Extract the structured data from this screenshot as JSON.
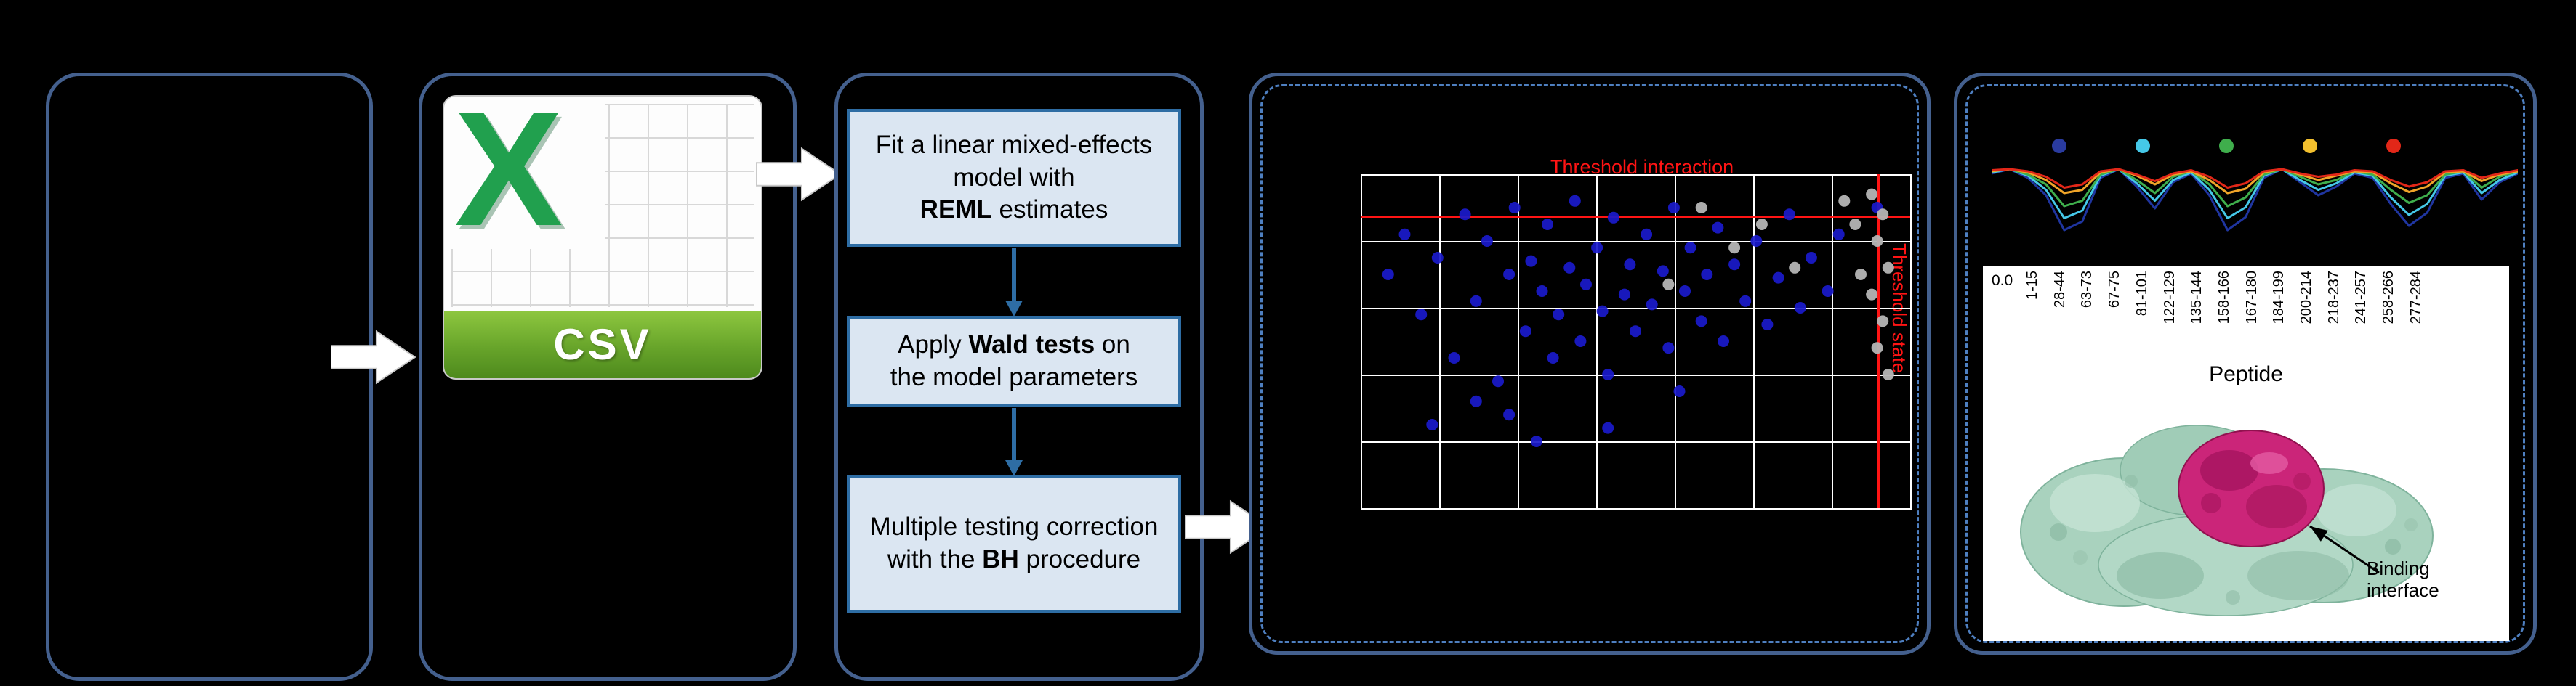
{
  "colors": {
    "panel_border": "#44608e",
    "dashed_border": "#4e7fc0",
    "step_fill": "#dbe6f2",
    "step_border": "#2e6da4",
    "arrow_blue": "#2e6da4",
    "threshold_red": "#ff1414",
    "point_blue": "#1a1acc",
    "point_gray": "#b5b5b5",
    "grid_white": "#ffffff",
    "csv_green_x": "#21a04e",
    "banner_top": "#8dc63f",
    "banner_bottom": "#4e8a1d"
  },
  "csv": {
    "logo_letter": "X",
    "banner_label": "CSV"
  },
  "method_steps": [
    {
      "pre": "Fit a linear mixed-effects model with\n",
      "bold": "REML",
      "post": " estimates"
    },
    {
      "pre": "Apply ",
      "bold": "Wald tests",
      "post": " on\nthe model parameters"
    },
    {
      "pre": "Multiple testing correction\nwith the ",
      "bold": "BH",
      "post": " procedure"
    }
  ],
  "scatter": {
    "hline_label": "Threshold interaction",
    "vline_label": "Threshold state",
    "hline_y": 0.125,
    "vline_x": 0.942,
    "grid_cols": 7,
    "grid_rows": 5,
    "points_blue": [
      [
        0.05,
        0.3
      ],
      [
        0.08,
        0.18
      ],
      [
        0.11,
        0.42
      ],
      [
        0.14,
        0.25
      ],
      [
        0.17,
        0.55
      ],
      [
        0.19,
        0.12
      ],
      [
        0.21,
        0.38
      ],
      [
        0.23,
        0.2
      ],
      [
        0.25,
        0.62
      ],
      [
        0.27,
        0.3
      ],
      [
        0.28,
        0.1
      ],
      [
        0.3,
        0.47
      ],
      [
        0.31,
        0.26
      ],
      [
        0.33,
        0.35
      ],
      [
        0.34,
        0.15
      ],
      [
        0.35,
        0.55
      ],
      [
        0.36,
        0.42
      ],
      [
        0.38,
        0.28
      ],
      [
        0.39,
        0.08
      ],
      [
        0.4,
        0.5
      ],
      [
        0.41,
        0.33
      ],
      [
        0.43,
        0.22
      ],
      [
        0.44,
        0.41
      ],
      [
        0.45,
        0.6
      ],
      [
        0.46,
        0.13
      ],
      [
        0.48,
        0.36
      ],
      [
        0.49,
        0.27
      ],
      [
        0.5,
        0.47
      ],
      [
        0.52,
        0.18
      ],
      [
        0.53,
        0.39
      ],
      [
        0.55,
        0.29
      ],
      [
        0.56,
        0.52
      ],
      [
        0.57,
        0.1
      ],
      [
        0.59,
        0.35
      ],
      [
        0.6,
        0.22
      ],
      [
        0.62,
        0.44
      ],
      [
        0.63,
        0.3
      ],
      [
        0.65,
        0.16
      ],
      [
        0.66,
        0.5
      ],
      [
        0.68,
        0.27
      ],
      [
        0.7,
        0.38
      ],
      [
        0.72,
        0.2
      ],
      [
        0.74,
        0.45
      ],
      [
        0.76,
        0.31
      ],
      [
        0.78,
        0.12
      ],
      [
        0.8,
        0.4
      ],
      [
        0.82,
        0.25
      ],
      [
        0.27,
        0.72
      ],
      [
        0.32,
        0.8
      ],
      [
        0.45,
        0.76
      ],
      [
        0.21,
        0.68
      ],
      [
        0.58,
        0.65
      ],
      [
        0.13,
        0.75
      ],
      [
        0.85,
        0.35
      ],
      [
        0.87,
        0.18
      ],
      [
        0.94,
        0.1
      ]
    ],
    "points_gray": [
      [
        0.93,
        0.06
      ],
      [
        0.95,
        0.12
      ],
      [
        0.94,
        0.2
      ],
      [
        0.96,
        0.28
      ],
      [
        0.93,
        0.36
      ],
      [
        0.95,
        0.44
      ],
      [
        0.94,
        0.52
      ],
      [
        0.96,
        0.6
      ],
      [
        0.88,
        0.08
      ],
      [
        0.9,
        0.15
      ],
      [
        0.62,
        0.1
      ],
      [
        0.68,
        0.22
      ],
      [
        0.73,
        0.15
      ],
      [
        0.79,
        0.28
      ],
      [
        0.56,
        0.33
      ],
      [
        0.91,
        0.3
      ]
    ]
  },
  "kinetics": {
    "y_min_label": "0.0",
    "x_axis_label": "Peptide",
    "legend_dots": [
      "#2a3b9f",
      "#45c8e8",
      "#3fae4c",
      "#f3c02e",
      "#e22718"
    ],
    "series": [
      {
        "color": "#1f35a0",
        "values": [
          0.84,
          0.88,
          0.8,
          0.64,
          0.32,
          0.4,
          0.8,
          0.88,
          0.72,
          0.52,
          0.76,
          0.84,
          0.64,
          0.32,
          0.44,
          0.8,
          0.88,
          0.76,
          0.64,
          0.72,
          0.84,
          0.8,
          0.56,
          0.36,
          0.48,
          0.8,
          0.84,
          0.6,
          0.76,
          0.84
        ]
      },
      {
        "color": "#45c8e8",
        "values": [
          0.85,
          0.88,
          0.82,
          0.69,
          0.43,
          0.5,
          0.82,
          0.88,
          0.75,
          0.59,
          0.78,
          0.85,
          0.69,
          0.43,
          0.53,
          0.82,
          0.88,
          0.78,
          0.69,
          0.75,
          0.85,
          0.82,
          0.62,
          0.46,
          0.56,
          0.82,
          0.85,
          0.66,
          0.78,
          0.85
        ]
      },
      {
        "color": "#3fae4c",
        "values": [
          0.86,
          0.88,
          0.83,
          0.74,
          0.54,
          0.59,
          0.83,
          0.88,
          0.78,
          0.66,
          0.81,
          0.86,
          0.74,
          0.54,
          0.62,
          0.83,
          0.88,
          0.81,
          0.74,
          0.78,
          0.86,
          0.83,
          0.69,
          0.57,
          0.64,
          0.83,
          0.86,
          0.71,
          0.81,
          0.86
        ]
      },
      {
        "color": "#f0a428",
        "values": [
          0.86,
          0.88,
          0.85,
          0.78,
          0.66,
          0.69,
          0.85,
          0.88,
          0.82,
          0.74,
          0.83,
          0.86,
          0.78,
          0.66,
          0.7,
          0.85,
          0.88,
          0.83,
          0.78,
          0.82,
          0.86,
          0.85,
          0.75,
          0.67,
          0.72,
          0.85,
          0.86,
          0.77,
          0.83,
          0.86
        ]
      },
      {
        "color": "#e22718",
        "values": [
          0.87,
          0.88,
          0.86,
          0.81,
          0.71,
          0.74,
          0.86,
          0.88,
          0.83,
          0.77,
          0.84,
          0.87,
          0.81,
          0.71,
          0.75,
          0.86,
          0.88,
          0.84,
          0.81,
          0.83,
          0.87,
          0.86,
          0.78,
          0.72,
          0.76,
          0.86,
          0.87,
          0.8,
          0.84,
          0.87
        ]
      }
    ],
    "peptides": [
      "1-15",
      "28-44",
      "63-73",
      "67-75",
      "81-101",
      "122-129",
      "135-144",
      "158-166",
      "167-180",
      "184-199",
      "200-214",
      "218-237",
      "241-257",
      "258-266",
      "277-284"
    ]
  },
  "structure": {
    "annotation": "Binding interface"
  }
}
